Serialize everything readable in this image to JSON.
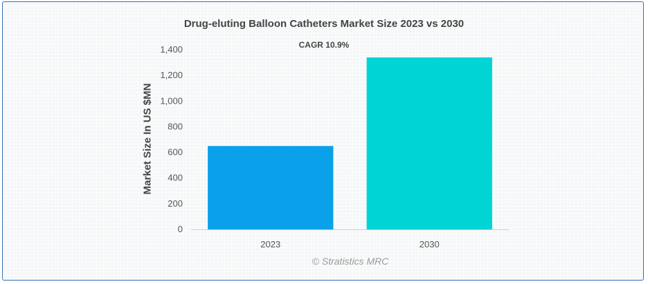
{
  "chart_data": {
    "type": "bar",
    "title": "Drug-eluting Balloon Catheters Market Size 2023 vs 2030",
    "subtitle": "CAGR 10.9%",
    "xlabel": "",
    "ylabel": "Market Size In US $MN",
    "categories": [
      "2023",
      "2030"
    ],
    "values": [
      650,
      1340
    ],
    "ylim": [
      0,
      1400
    ],
    "yticks": [
      0,
      200,
      400,
      600,
      800,
      1000,
      1200,
      1400
    ],
    "ytick_labels": [
      "0",
      "200",
      "400",
      "600",
      "800",
      "1,000",
      "1,200",
      "1,400"
    ],
    "colors": [
      "#0ba0ea",
      "#00d4d4"
    ],
    "grid": false,
    "legend": "none"
  },
  "watermark": "© Stratistics MRC"
}
